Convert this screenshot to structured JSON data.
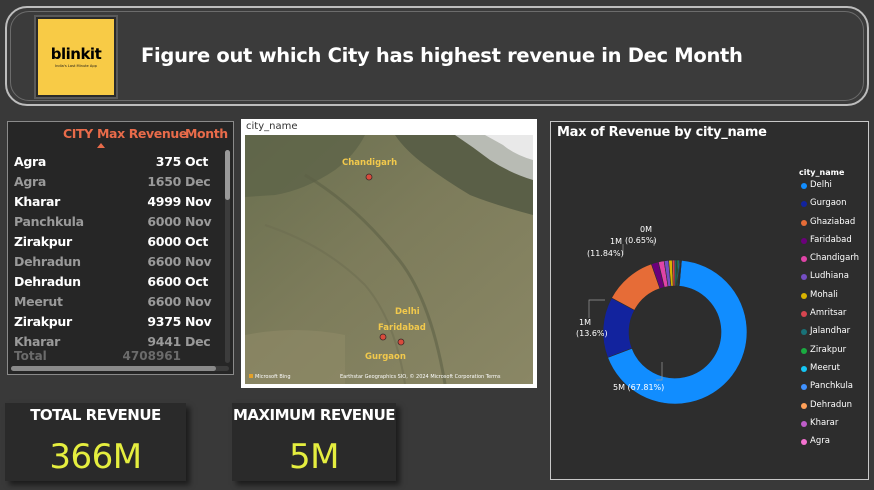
{
  "header": {
    "logo_name": "blinkit",
    "logo_tagline": "India's Last Minute App",
    "title": "Figure out which City has highest revenue in Dec Month"
  },
  "table": {
    "columns": [
      "CITY",
      "Max Revenue",
      "Month"
    ],
    "rows": [
      {
        "city": "Agra",
        "revenue": "375",
        "month": "Oct",
        "style": "bright"
      },
      {
        "city": "Agra",
        "revenue": "1650",
        "month": "Dec",
        "style": "dim"
      },
      {
        "city": "Kharar",
        "revenue": "4999",
        "month": "Nov",
        "style": "bright"
      },
      {
        "city": "Panchkula",
        "revenue": "6000",
        "month": "Nov",
        "style": "dim"
      },
      {
        "city": "Zirakpur",
        "revenue": "6000",
        "month": "Oct",
        "style": "bright"
      },
      {
        "city": "Dehradun",
        "revenue": "6600",
        "month": "Nov",
        "style": "dim"
      },
      {
        "city": "Dehradun",
        "revenue": "6600",
        "month": "Oct",
        "style": "bright"
      },
      {
        "city": "Meerut",
        "revenue": "6600",
        "month": "Nov",
        "style": "dim"
      },
      {
        "city": "Zirakpur",
        "revenue": "9375",
        "month": "Nov",
        "style": "bright"
      },
      {
        "city": "Kharar",
        "revenue": "9441",
        "month": "Dec",
        "style": "dim"
      }
    ],
    "total_label": "Total",
    "total_value": "4708961"
  },
  "map": {
    "label": "city_name",
    "pins": [
      {
        "name": "Chandigarh"
      },
      {
        "name": "Delhi"
      },
      {
        "name": "Faridabad"
      },
      {
        "name": "Gurgaon"
      }
    ],
    "bing_label": "Microsoft Bing",
    "credit": "Earthstar Geographics SIO, © 2024 Microsoft Corporation  Terms"
  },
  "kpis": {
    "total_revenue_label": "TOTAL REVENUE",
    "total_revenue_value": "366M",
    "max_revenue_label": "MAXIMUM REVENUE",
    "max_revenue_value": "5M"
  },
  "chart_data": {
    "type": "pie",
    "title": "Max of Revenue by city_name",
    "legend_title": "city_name",
    "legend_position": "right",
    "donut": true,
    "series": [
      {
        "name": "Delhi",
        "value": 67.81,
        "color": "#118dff"
      },
      {
        "name": "Gurgaon",
        "value": 13.6,
        "color": "#12239e"
      },
      {
        "name": "Ghaziabad",
        "value": 11.84,
        "color": "#e66c37"
      },
      {
        "name": "Faridabad",
        "value": 1.6,
        "color": "#6b007b"
      },
      {
        "name": "Chandigarh",
        "value": 1.3,
        "color": "#e044a7"
      },
      {
        "name": "Ludhiana",
        "value": 1.0,
        "color": "#744ec2"
      },
      {
        "name": "Mohali",
        "value": 0.8,
        "color": "#d9b300"
      },
      {
        "name": "Amritsar",
        "value": 0.6,
        "color": "#d64550"
      },
      {
        "name": "Jalandhar",
        "value": 0.4,
        "color": "#197278"
      },
      {
        "name": "Zirakpur",
        "value": 0.3,
        "color": "#1aab40"
      },
      {
        "name": "Meerut",
        "value": 0.25,
        "color": "#15c6f4"
      },
      {
        "name": "Panchkula",
        "value": 0.2,
        "color": "#4092ff"
      },
      {
        "name": "Dehradun",
        "value": 0.15,
        "color": "#ffa058"
      },
      {
        "name": "Kharar",
        "value": 0.1,
        "color": "#be5dc9"
      },
      {
        "name": "Agra",
        "value": 0.05,
        "color": "#f472d0"
      }
    ],
    "data_labels": [
      {
        "text": "5M (67.81%)"
      },
      {
        "text": "1M"
      },
      {
        "text": "(13.6%)"
      },
      {
        "text": "1M"
      },
      {
        "text": "(11.84%)"
      },
      {
        "text": "0M"
      },
      {
        "text": "(0.65%)"
      }
    ]
  }
}
